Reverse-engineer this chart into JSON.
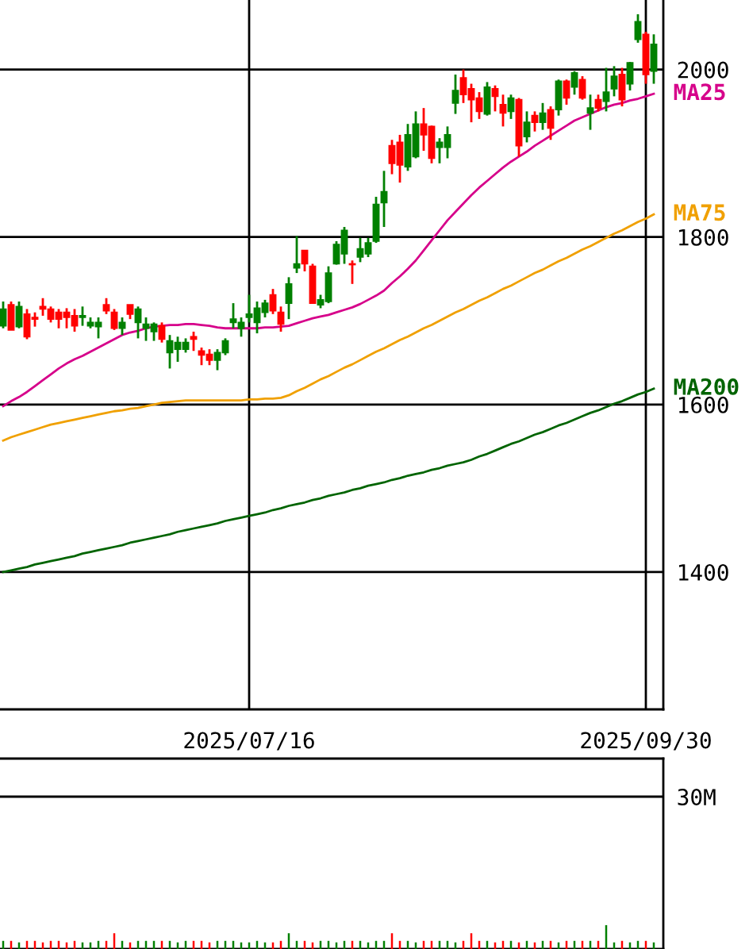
{
  "chart_data": [
    {
      "type": "candlestick",
      "categories": [
        null,
        null,
        null,
        null,
        null,
        null,
        null,
        null,
        null,
        null,
        null,
        null,
        null,
        null,
        null,
        null,
        null,
        null,
        null,
        null,
        null,
        null,
        null,
        null,
        null,
        null,
        null,
        null,
        null,
        null,
        null,
        "2025/07/16",
        null,
        null,
        null,
        null,
        null,
        null,
        null,
        null,
        null,
        null,
        null,
        null,
        null,
        null,
        null,
        null,
        null,
        null,
        null,
        null,
        null,
        null,
        null,
        null,
        null,
        null,
        null,
        null,
        null,
        null,
        null,
        null,
        null,
        null,
        null,
        null,
        null,
        null,
        null,
        null,
        null,
        null,
        null,
        null,
        null,
        null,
        null,
        null,
        null,
        "2025/09/30",
        null
      ],
      "ohlc": [
        [
          1694,
          1723,
          1691,
          1714
        ],
        [
          1719,
          1723,
          1689,
          1689
        ],
        [
          1693,
          1723,
          1691,
          1717
        ],
        [
          1708,
          1714,
          1678,
          1681
        ],
        [
          1704,
          1710,
          1693,
          1702
        ],
        [
          1717,
          1727,
          1706,
          1714
        ],
        [
          1714,
          1717,
          1698,
          1702
        ],
        [
          1710,
          1714,
          1691,
          1702
        ],
        [
          1710,
          1715,
          1691,
          1704
        ],
        [
          1706,
          1714,
          1687,
          1694
        ],
        [
          1704,
          1717,
          1694,
          1706
        ],
        [
          1694,
          1704,
          1691,
          1698
        ],
        [
          1693,
          1704,
          1679,
          1698
        ],
        [
          1719,
          1727,
          1708,
          1712
        ],
        [
          1710,
          1714,
          1689,
          1691
        ],
        [
          1691,
          1704,
          1683,
          1698
        ],
        [
          1719,
          1719,
          1702,
          1708
        ],
        [
          1698,
          1717,
          1679,
          1714
        ],
        [
          1691,
          1704,
          1676,
          1696
        ],
        [
          1687,
          1698,
          1676,
          1696
        ],
        [
          1694,
          1698,
          1674,
          1678
        ],
        [
          1662,
          1683,
          1643,
          1676
        ],
        [
          1666,
          1681,
          1651,
          1674
        ],
        [
          1666,
          1679,
          1662,
          1674
        ],
        [
          1681,
          1687,
          1664,
          1678
        ],
        [
          1664,
          1668,
          1647,
          1659
        ],
        [
          1660,
          1666,
          1647,
          1653
        ],
        [
          1653,
          1666,
          1641,
          1662
        ],
        [
          1662,
          1679,
          1659,
          1676
        ],
        [
          1698,
          1721,
          1691,
          1702
        ],
        [
          1691,
          1704,
          1681,
          1698
        ],
        [
          1704,
          1731,
          1698,
          1708
        ],
        [
          1698,
          1723,
          1685,
          1715
        ],
        [
          1710,
          1725,
          1704,
          1721
        ],
        [
          1731,
          1738,
          1708,
          1712
        ],
        [
          1710,
          1717,
          1687,
          1696
        ],
        [
          1721,
          1752,
          1702,
          1744
        ],
        [
          1763,
          1801,
          1757,
          1768
        ],
        [
          1784,
          1784,
          1759,
          1768
        ],
        [
          1765,
          1768,
          1721,
          1721
        ],
        [
          1719,
          1731,
          1715,
          1725
        ],
        [
          1723,
          1765,
          1721,
          1757
        ],
        [
          1768,
          1795,
          1767,
          1791
        ],
        [
          1780,
          1812,
          1768,
          1808
        ],
        [
          1768,
          1772,
          1744,
          1767
        ],
        [
          1776,
          1799,
          1770,
          1786
        ],
        [
          1780,
          1799,
          1776,
          1793
        ],
        [
          1795,
          1848,
          1793,
          1839
        ],
        [
          1841,
          1879,
          1812,
          1854
        ],
        [
          1909,
          1916,
          1875,
          1888
        ],
        [
          1913,
          1922,
          1865,
          1886
        ],
        [
          1884,
          1935,
          1879,
          1922
        ],
        [
          1896,
          1950,
          1894,
          1935
        ],
        [
          1935,
          1954,
          1903,
          1922
        ],
        [
          1932,
          1933,
          1888,
          1894
        ],
        [
          1907,
          1918,
          1888,
          1913
        ],
        [
          1907,
          1932,
          1894,
          1922
        ],
        [
          1960,
          1994,
          1947,
          1975
        ],
        [
          1990,
          2000,
          1960,
          1970
        ],
        [
          1977,
          1983,
          1937,
          1964
        ],
        [
          1966,
          1973,
          1941,
          1950
        ],
        [
          1947,
          1985,
          1945,
          1979
        ],
        [
          1977,
          1981,
          1950,
          1968
        ],
        [
          1958,
          1970,
          1932,
          1948
        ],
        [
          1950,
          1970,
          1941,
          1966
        ],
        [
          1964,
          1966,
          1896,
          1909
        ],
        [
          1920,
          1950,
          1913,
          1937
        ],
        [
          1945,
          1950,
          1926,
          1937
        ],
        [
          1937,
          1960,
          1928,
          1948
        ],
        [
          1952,
          1956,
          1916,
          1930
        ],
        [
          1952,
          1988,
          1945,
          1986
        ],
        [
          1986,
          1988,
          1958,
          1966
        ],
        [
          1979,
          1998,
          1970,
          1996
        ],
        [
          1988,
          1992,
          1964,
          1966
        ],
        [
          1948,
          1970,
          1928,
          1954
        ],
        [
          1964,
          1970,
          1950,
          1954
        ],
        [
          1962,
          2002,
          1950,
          1973
        ],
        [
          1977,
          2004,
          1968,
          1992
        ],
        [
          1994,
          2002,
          1956,
          1964
        ],
        [
          1983,
          2009,
          1975,
          2008
        ],
        [
          2036,
          2066,
          2032,
          2057
        ],
        [
          2042,
          2045,
          1983,
          1994
        ],
        [
          1998,
          2042,
          1983,
          2030
        ]
      ],
      "colors": [
        "#008000",
        "#ff0000",
        "#008000",
        "#ff0000",
        "#ff0000",
        "#ff0000",
        "#ff0000",
        "#ff0000",
        "#ff0000",
        "#ff0000",
        "#008000",
        "#008000",
        "#008000",
        "#ff0000",
        "#ff0000",
        "#008000",
        "#ff0000",
        "#008000",
        "#008000",
        "#008000",
        "#ff0000",
        "#008000",
        "#008000",
        "#008000",
        "#ff0000",
        "#ff0000",
        "#ff0000",
        "#008000",
        "#008000",
        "#008000",
        "#008000",
        "#008000",
        "#008000",
        "#008000",
        "#ff0000",
        "#ff0000",
        "#008000",
        "#008000",
        "#ff0000",
        "#ff0000",
        "#008000",
        "#008000",
        "#008000",
        "#008000",
        "#ff0000",
        "#008000",
        "#008000",
        "#008000",
        "#008000",
        "#ff0000",
        "#ff0000",
        "#008000",
        "#008000",
        "#ff0000",
        "#ff0000",
        "#008000",
        "#008000",
        "#008000",
        "#ff0000",
        "#ff0000",
        "#ff0000",
        "#008000",
        "#ff0000",
        "#ff0000",
        "#008000",
        "#ff0000",
        "#008000",
        "#ff0000",
        "#008000",
        "#ff0000",
        "#008000",
        "#ff0000",
        "#008000",
        "#ff0000",
        "#008000",
        "#ff0000",
        "#008000",
        "#008000",
        "#ff0000",
        "#008000",
        "#008000",
        "#ff0000",
        "#008000"
      ],
      "series": [
        {
          "name": "MA25",
          "type": "line",
          "color": "#d6008a",
          "values": [
            1598,
            1604,
            1609,
            1615,
            1622,
            1629,
            1636,
            1643,
            1649,
            1654,
            1658,
            1663,
            1668,
            1673,
            1678,
            1683,
            1686,
            1688,
            1691,
            1693,
            1694,
            1695,
            1695,
            1696,
            1696,
            1695,
            1694,
            1692,
            1691,
            1691,
            1691,
            1691,
            1691,
            1692,
            1692,
            1693,
            1694,
            1697,
            1700,
            1703,
            1705,
            1707,
            1710,
            1713,
            1716,
            1720,
            1725,
            1730,
            1736,
            1745,
            1753,
            1762,
            1772,
            1784,
            1796,
            1808,
            1820,
            1830,
            1840,
            1850,
            1859,
            1867,
            1875,
            1883,
            1890,
            1896,
            1902,
            1909,
            1915,
            1921,
            1927,
            1933,
            1939,
            1943,
            1947,
            1951,
            1955,
            1958,
            1960,
            1963,
            1965,
            1968,
            1971
          ]
        },
        {
          "name": "MA75",
          "type": "line",
          "color": "#f0a000",
          "values": [
            1557,
            1561,
            1564,
            1567,
            1570,
            1573,
            1576,
            1578,
            1580,
            1582,
            1584,
            1586,
            1588,
            1590,
            1592,
            1593,
            1595,
            1596,
            1598,
            1600,
            1602,
            1603,
            1604,
            1605,
            1605,
            1605,
            1605,
            1605,
            1605,
            1605,
            1605,
            1606,
            1606,
            1607,
            1607,
            1608,
            1611,
            1616,
            1620,
            1625,
            1630,
            1634,
            1639,
            1644,
            1648,
            1653,
            1658,
            1663,
            1667,
            1672,
            1677,
            1681,
            1686,
            1691,
            1695,
            1700,
            1705,
            1710,
            1714,
            1719,
            1724,
            1728,
            1733,
            1738,
            1742,
            1747,
            1752,
            1757,
            1761,
            1766,
            1771,
            1775,
            1780,
            1785,
            1789,
            1794,
            1799,
            1804,
            1808,
            1813,
            1818,
            1822,
            1827
          ]
        },
        {
          "name": "MA200",
          "type": "line",
          "color": "#006400",
          "values": [
            1400,
            1402,
            1404,
            1406,
            1409,
            1411,
            1413,
            1415,
            1417,
            1419,
            1422,
            1424,
            1426,
            1428,
            1430,
            1432,
            1435,
            1437,
            1439,
            1441,
            1443,
            1445,
            1448,
            1450,
            1452,
            1454,
            1456,
            1458,
            1461,
            1463,
            1465,
            1467,
            1469,
            1471,
            1474,
            1476,
            1479,
            1481,
            1483,
            1486,
            1488,
            1491,
            1493,
            1495,
            1498,
            1500,
            1503,
            1505,
            1507,
            1510,
            1512,
            1515,
            1517,
            1519,
            1522,
            1524,
            1527,
            1529,
            1531,
            1534,
            1538,
            1541,
            1545,
            1549,
            1553,
            1556,
            1560,
            1564,
            1567,
            1571,
            1575,
            1578,
            1582,
            1586,
            1590,
            1593,
            1597,
            1601,
            1604,
            1608,
            1612,
            1615,
            1619
          ]
        }
      ],
      "ylim": [
        1236,
        2083
      ],
      "yticks": [
        1400,
        1600,
        1800,
        2000
      ],
      "grid": true
    },
    {
      "type": "bar",
      "categories": [
        null,
        null,
        null,
        null,
        null,
        null,
        null,
        null,
        null,
        null,
        null,
        null,
        null,
        null,
        null,
        null,
        null,
        null,
        null,
        null,
        null,
        null,
        null,
        null,
        null,
        null,
        null,
        null,
        null,
        null,
        null,
        null,
        null,
        null,
        null,
        null,
        null,
        null,
        null,
        null,
        null,
        null,
        null,
        null,
        null,
        null,
        null,
        null,
        null,
        null,
        null,
        null,
        null,
        null,
        null,
        null,
        null,
        null,
        null,
        null,
        null,
        null,
        null,
        null,
        null,
        null,
        null,
        null,
        null,
        null,
        null,
        null,
        null,
        null,
        null,
        null,
        null,
        null,
        null,
        null,
        null,
        null,
        null
      ],
      "values": [
        1.6,
        1.6,
        1.3,
        1.6,
        1.6,
        1.3,
        1.6,
        1.6,
        1.3,
        1.6,
        1.3,
        1.3,
        1.6,
        1.6,
        3.1,
        1.6,
        1.3,
        1.6,
        1.6,
        1.6,
        1.6,
        1.6,
        1.3,
        1.6,
        1.6,
        1.6,
        1.3,
        1.6,
        1.6,
        1.6,
        1.3,
        1.3,
        1.6,
        1.3,
        1.3,
        1.6,
        3.1,
        1.6,
        1.6,
        1.3,
        1.6,
        1.6,
        1.3,
        1.6,
        1.6,
        1.6,
        1.3,
        1.6,
        1.6,
        3.1,
        1.6,
        1.6,
        1.3,
        1.6,
        1.6,
        1.6,
        1.6,
        1.3,
        1.6,
        3.1,
        1.6,
        1.6,
        1.3,
        1.6,
        1.6,
        1.3,
        1.6,
        1.3,
        1.6,
        1.6,
        1.3,
        1.6,
        1.6,
        1.6,
        1.6,
        1.6,
        4.7,
        1.3,
        1.6,
        1.3,
        1.6,
        1.6,
        1.3
      ],
      "colors": [
        "#008000",
        "#ff0000",
        "#008000",
        "#ff0000",
        "#ff0000",
        "#ff0000",
        "#ff0000",
        "#ff0000",
        "#ff0000",
        "#ff0000",
        "#008000",
        "#008000",
        "#008000",
        "#ff0000",
        "#ff0000",
        "#008000",
        "#ff0000",
        "#008000",
        "#008000",
        "#008000",
        "#ff0000",
        "#008000",
        "#008000",
        "#008000",
        "#ff0000",
        "#ff0000",
        "#ff0000",
        "#008000",
        "#008000",
        "#008000",
        "#008000",
        "#008000",
        "#008000",
        "#008000",
        "#ff0000",
        "#ff0000",
        "#008000",
        "#008000",
        "#ff0000",
        "#ff0000",
        "#008000",
        "#008000",
        "#008000",
        "#008000",
        "#ff0000",
        "#008000",
        "#008000",
        "#008000",
        "#008000",
        "#ff0000",
        "#ff0000",
        "#008000",
        "#008000",
        "#ff0000",
        "#ff0000",
        "#008000",
        "#008000",
        "#008000",
        "#ff0000",
        "#ff0000",
        "#ff0000",
        "#008000",
        "#ff0000",
        "#ff0000",
        "#008000",
        "#ff0000",
        "#008000",
        "#ff0000",
        "#008000",
        "#ff0000",
        "#008000",
        "#ff0000",
        "#008000",
        "#ff0000",
        "#008000",
        "#ff0000",
        "#008000",
        "#008000",
        "#ff0000",
        "#008000",
        "#008000",
        "#ff0000",
        "#008000"
      ],
      "ylim": [
        0,
        37.5
      ],
      "yticks": [
        {
          "value": 30,
          "label": "30M"
        }
      ],
      "grid": "y",
      "tick_labels": "y"
    }
  ]
}
